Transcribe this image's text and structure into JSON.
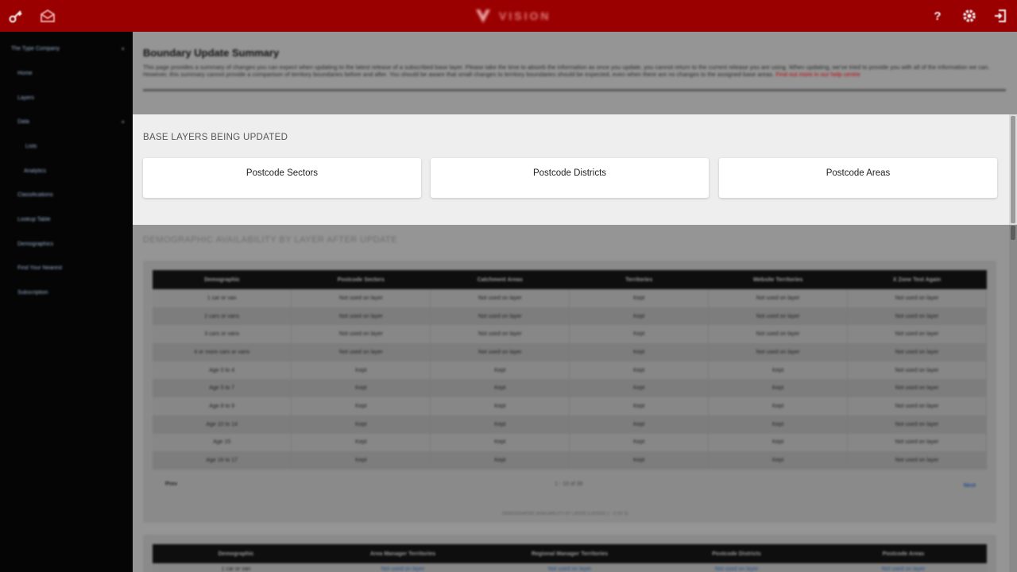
{
  "header": {
    "brand": "VISION",
    "icons": [
      "key-icon",
      "mail-icon",
      "help-icon",
      "settings-icon",
      "logout-icon"
    ],
    "accent_color": "#9b0000"
  },
  "sidebar": {
    "items": [
      {
        "label": "The Type Company"
      },
      {
        "label": "Home"
      },
      {
        "label": "Layers"
      },
      {
        "label": "Data"
      },
      {
        "label": "Lists"
      },
      {
        "label": "Analytics"
      },
      {
        "label": "Classifications"
      },
      {
        "label": "Lookup Table"
      },
      {
        "label": "Demographics"
      },
      {
        "label": "Find Your Nearest"
      },
      {
        "label": "Subscription"
      }
    ]
  },
  "page": {
    "title": "Boundary Update Summary",
    "description": "This page provides a summary of changes you can expect when updating to the latest release of a subscribed base layer. Please take the time to absorb the information as once you update, you cannot return to the current release you are using. When updating, we've tried to provide you with all of the information we can. However, this summary cannot provide a comparison of territory boundaries before and after. You should be aware that small changes to territory boundaries should be expected, even when there are no changes to the assigned base areas.",
    "help_link": "Find out more in our help centre"
  },
  "base_layers": {
    "title": "BASE LAYERS BEING UPDATED",
    "cards": [
      "Postcode Sectors",
      "Postcode Districts",
      "Postcode Areas"
    ]
  },
  "demographics": {
    "title": "DEMOGRAPHIC AVAILABILITY BY LAYER AFTER UPDATE",
    "columns": [
      "Demographic",
      "Postcode Sectors",
      "Catchment Areas",
      "Territories",
      "Website Territories",
      "X Zone Test Again"
    ],
    "rows": [
      [
        "1 car or van",
        "Not used on layer",
        "Not used on layer",
        "Kept",
        "Not used on layer",
        "Not used on layer"
      ],
      [
        "2 cars or vans",
        "Not used on layer",
        "Not used on layer",
        "Kept",
        "Not used on layer",
        "Not used on layer"
      ],
      [
        "3 cars or vans",
        "Not used on layer",
        "Not used on layer",
        "Kept",
        "Not used on layer",
        "Not used on layer"
      ],
      [
        "4 or more cars or vans",
        "Not used on layer",
        "Not used on layer",
        "Kept",
        "Not used on layer",
        "Not used on layer"
      ],
      [
        "Age 0 to 4",
        "Kept",
        "Kept",
        "Kept",
        "Kept",
        "Not used on layer"
      ],
      [
        "Age 5 to 7",
        "Kept",
        "Kept",
        "Kept",
        "Kept",
        "Not used on layer"
      ],
      [
        "Age 8 to 9",
        "Kept",
        "Kept",
        "Kept",
        "Kept",
        "Not used on layer"
      ],
      [
        "Age 10 to 14",
        "Kept",
        "Kept",
        "Kept",
        "Kept",
        "Not used on layer"
      ],
      [
        "Age 15",
        "Kept",
        "Kept",
        "Kept",
        "Kept",
        "Not used on layer"
      ],
      [
        "Age 16 to 17",
        "Kept",
        "Kept",
        "Kept",
        "Kept",
        "Not used on layer"
      ]
    ],
    "prev_label": "Prev",
    "page_count": "1 - 10 of 39",
    "next_label": "Next",
    "caption": "DEMOGRAPHIC AVAILABILITY BY LAYER (LAYERS 1 - 5 OF 9)"
  },
  "demographics2": {
    "columns": [
      "Demographic",
      "Area Manager Territories",
      "Regional Manager Territories",
      "Postcode Districts",
      "Postcode Areas"
    ],
    "first_row": [
      "1 car or van",
      "Not used on layer",
      "Not used on layer",
      "Not used on layer",
      "Not used on layer"
    ]
  }
}
